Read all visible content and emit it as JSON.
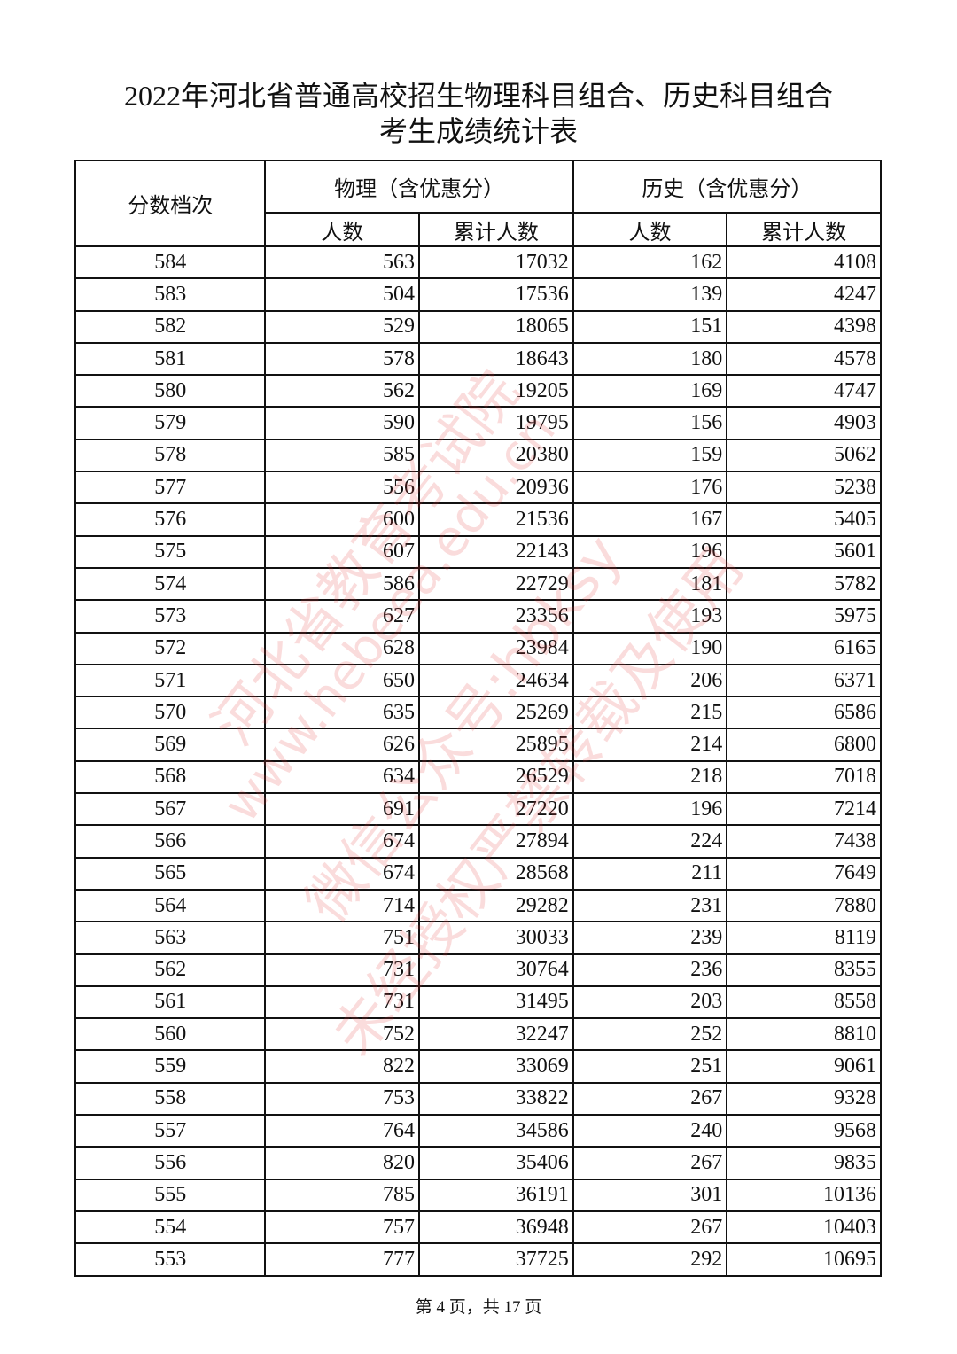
{
  "title_line1": "2022年河北省普通高校招生物理科目组合、历史科目组合",
  "title_line2": "考生成绩统计表",
  "headers": {
    "score_band": "分数档次",
    "physics": "物理（含优惠分）",
    "history": "历史（含优惠分）",
    "count": "人数",
    "cumulative": "累计人数"
  },
  "rows": [
    [
      "584",
      "563",
      "17032",
      "162",
      "4108"
    ],
    [
      "583",
      "504",
      "17536",
      "139",
      "4247"
    ],
    [
      "582",
      "529",
      "18065",
      "151",
      "4398"
    ],
    [
      "581",
      "578",
      "18643",
      "180",
      "4578"
    ],
    [
      "580",
      "562",
      "19205",
      "169",
      "4747"
    ],
    [
      "579",
      "590",
      "19795",
      "156",
      "4903"
    ],
    [
      "578",
      "585",
      "20380",
      "159",
      "5062"
    ],
    [
      "577",
      "556",
      "20936",
      "176",
      "5238"
    ],
    [
      "576",
      "600",
      "21536",
      "167",
      "5405"
    ],
    [
      "575",
      "607",
      "22143",
      "196",
      "5601"
    ],
    [
      "574",
      "586",
      "22729",
      "181",
      "5782"
    ],
    [
      "573",
      "627",
      "23356",
      "193",
      "5975"
    ],
    [
      "572",
      "628",
      "23984",
      "190",
      "6165"
    ],
    [
      "571",
      "650",
      "24634",
      "206",
      "6371"
    ],
    [
      "570",
      "635",
      "25269",
      "215",
      "6586"
    ],
    [
      "569",
      "626",
      "25895",
      "214",
      "6800"
    ],
    [
      "568",
      "634",
      "26529",
      "218",
      "7018"
    ],
    [
      "567",
      "691",
      "27220",
      "196",
      "7214"
    ],
    [
      "566",
      "674",
      "27894",
      "224",
      "7438"
    ],
    [
      "565",
      "674",
      "28568",
      "211",
      "7649"
    ],
    [
      "564",
      "714",
      "29282",
      "231",
      "7880"
    ],
    [
      "563",
      "751",
      "30033",
      "239",
      "8119"
    ],
    [
      "562",
      "731",
      "30764",
      "236",
      "8355"
    ],
    [
      "561",
      "731",
      "31495",
      "203",
      "8558"
    ],
    [
      "560",
      "752",
      "32247",
      "252",
      "8810"
    ],
    [
      "559",
      "822",
      "33069",
      "251",
      "9061"
    ],
    [
      "558",
      "753",
      "33822",
      "267",
      "9328"
    ],
    [
      "557",
      "764",
      "34586",
      "240",
      "9568"
    ],
    [
      "556",
      "820",
      "35406",
      "267",
      "9835"
    ],
    [
      "555",
      "785",
      "36191",
      "301",
      "10136"
    ],
    [
      "554",
      "757",
      "36948",
      "267",
      "10403"
    ],
    [
      "553",
      "777",
      "37725",
      "292",
      "10695"
    ]
  ],
  "footer": "第 4 页，共 17 页",
  "watermark": [
    "河北省教育考试院",
    "www.hebeea.edu.cn",
    "微信公众号:hbksy",
    "未经授权严禁转载及使用"
  ],
  "watermark_color": "#e63c3c"
}
